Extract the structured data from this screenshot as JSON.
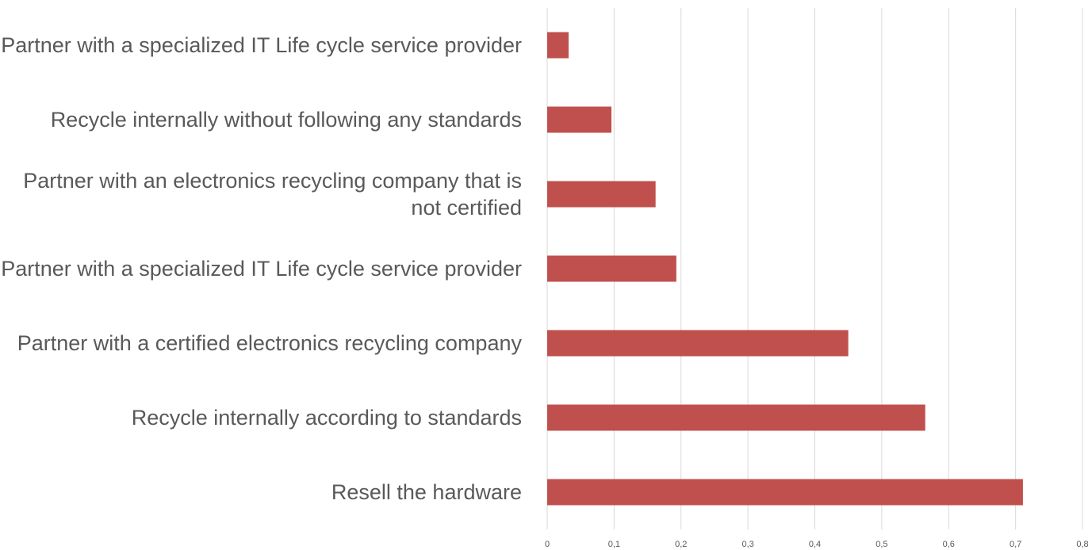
{
  "chart_data": {
    "type": "barh",
    "categories": [
      "Partner with a specialized IT Life cycle service provider",
      "Recycle internally without following any standards",
      "Partner with an electronics recycling company that is not certified",
      "Partner with a specialized IT Life cycle service provider",
      "Partner with a certified electronics recycling company",
      "Recycle internally according to standards",
      "Resell the hardware"
    ],
    "values": [
      0.032,
      0.096,
      0.162,
      0.193,
      0.45,
      0.565,
      0.711
    ],
    "color": "#c0504d",
    "xlim": [
      0,
      0.8
    ],
    "xticks": [
      0,
      {
        "value": 0.1,
        "label": "0,1"
      },
      {
        "value": 0.2,
        "label": "0,2"
      },
      {
        "value": 0.3,
        "label": "0,3"
      },
      {
        "value": 0.4,
        "label": "0,4"
      },
      {
        "value": 0.5,
        "label": "0,5"
      },
      {
        "value": 0.6,
        "label": "0,6"
      },
      {
        "value": 0.7,
        "label": "0,7"
      },
      {
        "value": 0.8,
        "label": "0,8"
      }
    ],
    "grid": true
  }
}
